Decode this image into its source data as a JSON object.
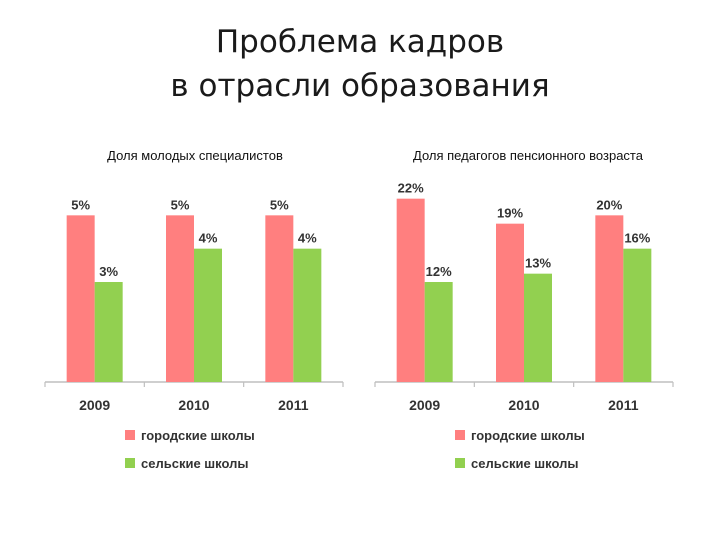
{
  "slide": {
    "title_line1": "Проблема кадров",
    "title_line2": "в отрасли образования"
  },
  "colors": {
    "urban": "#ff7f7f",
    "rural": "#92d050",
    "axis": "#bfbfbf",
    "text": "#333333"
  },
  "chart_data": [
    {
      "type": "bar",
      "title": "Доля молодых специалистов",
      "categories": [
        "2009",
        "2010",
        "2011"
      ],
      "series": [
        {
          "name": "городские школы",
          "values": [
            5,
            5,
            5
          ]
        },
        {
          "name": "сельские школы",
          "values": [
            3,
            4,
            4
          ]
        }
      ],
      "data_labels": [
        [
          "5%",
          "5%",
          "5%"
        ],
        [
          "3%",
          "4%",
          "4%"
        ]
      ],
      "ylim": [
        0,
        6.0
      ],
      "grid": false,
      "legend": "bottom"
    },
    {
      "type": "bar",
      "title": "Доля педагогов пенсионного возраста",
      "categories": [
        "2009",
        "2010",
        "2011"
      ],
      "series": [
        {
          "name": "городские школы",
          "values": [
            22,
            19,
            20
          ]
        },
        {
          "name": "сельские школы",
          "values": [
            12,
            13,
            16
          ]
        }
      ],
      "data_labels": [
        [
          "22%",
          "19%",
          "20%"
        ],
        [
          "12%",
          "13%",
          "16%"
        ]
      ],
      "ylim": [
        0,
        24
      ],
      "grid": false,
      "legend": "bottom"
    }
  ]
}
